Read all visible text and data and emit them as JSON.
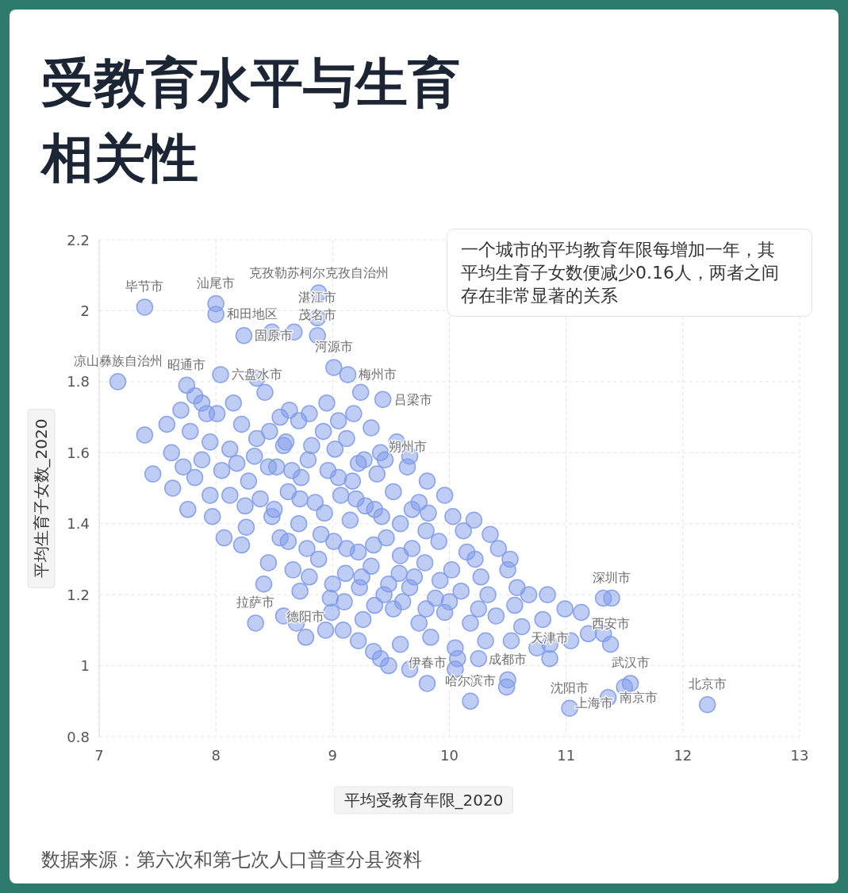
{
  "chart_data": {
    "type": "scatter",
    "title": "受教育水平与生育相关性",
    "xlabel": "平均受教育年限_2020",
    "ylabel": "平均生育子女数_2020",
    "color": "#7f9be9",
    "marker": "circle",
    "grid": true,
    "xlim": [
      7,
      13
    ],
    "ylim": [
      0.8,
      2.2
    ],
    "xticks": [
      7,
      8,
      9,
      10,
      11,
      12,
      13
    ],
    "yticks": [
      0.8,
      1,
      1.2,
      1.4,
      1.6,
      1.8,
      2,
      2.2
    ],
    "x": [
      7.16,
      7.39,
      7.75,
      8.0,
      8.0,
      8.04,
      8.24,
      8.48,
      8.67,
      8.88,
      8.87,
      8.87,
      8.35,
      9.01,
      9.13,
      9.24,
      9.43,
      7.92,
      8.01,
      7.39,
      7.46,
      7.63,
      7.76,
      7.97,
      8.07,
      8.26,
      8.41,
      8.58,
      8.34,
      8.69,
      8.77,
      8.94,
      9.09,
      9.35,
      9.41,
      9.48,
      9.66,
      9.81,
      10.05,
      9.41,
      10.03,
      10.21,
      10.35,
      10.5,
      10.58,
      10.68,
      10.84,
      10.99,
      11.13,
      11.32,
      11.39,
      11.19,
      11.32,
      11.38,
      11.04,
      10.86,
      10.75,
      10.86,
      10.53,
      10.5,
      10.49,
      10.18,
      10.25,
      10.07,
      11.03,
      11.36,
      11.5,
      11.55,
      12.21,
      9.64,
      7.82,
      8.15,
      8.42,
      8.63,
      8.95,
      9.18,
      7.58,
      7.78,
      8.22,
      8.46,
      8.71,
      8.92,
      9.12,
      9.33,
      9.55,
      7.62,
      7.88,
      8.12,
      8.33,
      8.58,
      8.79,
      9.02,
      9.22,
      9.66,
      7.82,
      8.05,
      8.28,
      8.52,
      8.73,
      8.96,
      9.17,
      9.38,
      9.81,
      8.12,
      8.38,
      8.62,
      8.85,
      9.07,
      9.28,
      9.52,
      9.74,
      9.96,
      8.48,
      8.71,
      8.93,
      9.15,
      9.36,
      9.58,
      9.82,
      10.12,
      8.22,
      8.55,
      8.78,
      9.01,
      9.22,
      9.46,
      9.68,
      9.91,
      10.15,
      10.42,
      8.45,
      8.66,
      8.88,
      9.11,
      9.33,
      9.57,
      9.79,
      10.02,
      10.27,
      10.52,
      8.72,
      8.98,
      9.23,
      9.44,
      9.66,
      9.88,
      10.1,
      10.33,
      10.56,
      8.99,
      9.26,
      9.52,
      9.74,
      9.96,
      10.18,
      10.4,
      10.62,
      10.8,
      9.22,
      9.58,
      9.84,
      10.05,
      10.31,
      8.55,
      8.8,
      9.05,
      8.35,
      8.6,
      8.82,
      9.45,
      8.45,
      8.65,
      9.05,
      9.27,
      8.25,
      8.5,
      8.72,
      9.2,
      9.42,
      9.68,
      8.62,
      8.9,
      9.12,
      9.35,
      9.58,
      9.8,
      8.8,
      9.0,
      9.25,
      9.48,
      9.7,
      9.92,
      10.22,
      9.1,
      9.36,
      9.6,
      9.8,
      10.0,
      10.25,
      7.7,
      7.95,
      7.72,
      7.95,
      8.18,
      7.88
    ],
    "values": [
      1.8,
      2.01,
      1.79,
      2.02,
      1.99,
      1.82,
      1.93,
      1.94,
      1.94,
      2.05,
      1.98,
      1.93,
      1.81,
      1.84,
      1.82,
      1.77,
      1.75,
      1.71,
      1.71,
      1.65,
      1.54,
      1.5,
      1.44,
      1.42,
      1.36,
      1.39,
      1.23,
      1.14,
      1.12,
      1.12,
      1.08,
      1.1,
      1.1,
      1.04,
      1.02,
      1.0,
      0.99,
      0.95,
      0.99,
      1.6,
      1.42,
      1.41,
      1.37,
      1.27,
      1.22,
      1.2,
      1.2,
      1.16,
      1.15,
      1.19,
      1.19,
      1.09,
      1.09,
      1.06,
      1.07,
      1.06,
      1.05,
      1.02,
      1.07,
      0.96,
      0.94,
      0.9,
      1.02,
      1.02,
      0.88,
      0.91,
      0.94,
      0.95,
      0.89,
      1.56,
      1.76,
      1.74,
      1.77,
      1.72,
      1.74,
      1.71,
      1.68,
      1.66,
      1.68,
      1.66,
      1.69,
      1.66,
      1.64,
      1.67,
      1.63,
      1.6,
      1.58,
      1.61,
      1.59,
      1.62,
      1.58,
      1.61,
      1.57,
      1.59,
      1.53,
      1.55,
      1.52,
      1.56,
      1.53,
      1.55,
      1.52,
      1.54,
      1.52,
      1.48,
      1.47,
      1.49,
      1.46,
      1.48,
      1.45,
      1.49,
      1.46,
      1.48,
      1.42,
      1.4,
      1.43,
      1.41,
      1.44,
      1.4,
      1.43,
      1.38,
      1.34,
      1.36,
      1.33,
      1.35,
      1.32,
      1.36,
      1.33,
      1.35,
      1.32,
      1.33,
      1.29,
      1.27,
      1.3,
      1.26,
      1.28,
      1.26,
      1.29,
      1.27,
      1.25,
      1.3,
      1.21,
      1.19,
      1.22,
      1.2,
      1.22,
      1.19,
      1.21,
      1.2,
      1.17,
      1.15,
      1.13,
      1.16,
      1.12,
      1.15,
      1.12,
      1.14,
      1.11,
      1.13,
      1.07,
      1.06,
      1.08,
      1.05,
      1.07,
      1.7,
      1.71,
      1.69,
      1.64,
      1.63,
      1.62,
      1.58,
      1.56,
      1.55,
      1.53,
      1.58,
      1.45,
      1.44,
      1.47,
      1.47,
      1.42,
      1.44,
      1.35,
      1.37,
      1.33,
      1.34,
      1.31,
      1.38,
      1.25,
      1.23,
      1.25,
      1.23,
      1.25,
      1.24,
      1.3,
      1.18,
      1.17,
      1.18,
      1.16,
      1.18,
      1.16,
      1.72,
      1.63,
      1.56,
      1.48,
      1.57,
      1.74
    ],
    "annotations": [
      "一个城市的平均教育年限每增加一年，其平均生育子女数便减少0.16人，两者之间存在非常显著的关系",
      {
        "text": "毕节市",
        "x": 7.39,
        "y": 2.01
      },
      {
        "text": "汕尾市",
        "x": 8.0,
        "y": 2.02
      },
      {
        "text": "和田地区",
        "x": 8.0,
        "y": 1.99
      },
      {
        "text": "克孜勒苏柯尔克孜自治州",
        "x": 8.88,
        "y": 2.05
      },
      {
        "text": "湛江市",
        "x": 8.87,
        "y": 1.98
      },
      {
        "text": "茂名市",
        "x": 8.87,
        "y": 1.93
      },
      {
        "text": "固原市",
        "x": 8.24,
        "y": 1.93
      },
      {
        "text": "凉山彝族自治州",
        "x": 7.16,
        "y": 1.8
      },
      {
        "text": "昭通市",
        "x": 7.75,
        "y": 1.79
      },
      {
        "text": "六盘水市",
        "x": 8.04,
        "y": 1.82
      },
      {
        "text": "河源市",
        "x": 9.01,
        "y": 1.84
      },
      {
        "text": "梅州市",
        "x": 9.13,
        "y": 1.82
      },
      {
        "text": "吕梁市",
        "x": 9.43,
        "y": 1.75
      },
      {
        "text": "朔州市",
        "x": 9.64,
        "y": 1.56
      },
      {
        "text": "拉萨市",
        "x": 8.34,
        "y": 1.12
      },
      {
        "text": "德阳市",
        "x": 8.77,
        "y": 1.08
      },
      {
        "text": "伊春市",
        "x": 9.81,
        "y": 0.95
      },
      {
        "text": "哈尔滨市",
        "x": 10.18,
        "y": 0.9
      },
      {
        "text": "成都市",
        "x": 10.5,
        "y": 0.96
      },
      {
        "text": "天津市",
        "x": 10.86,
        "y": 1.02
      },
      {
        "text": "深圳市",
        "x": 11.39,
        "y": 1.19
      },
      {
        "text": "西安市",
        "x": 11.38,
        "y": 1.06
      },
      {
        "text": "沈阳市",
        "x": 11.03,
        "y": 0.88
      },
      {
        "text": "南京市",
        "x": 11.36,
        "y": 0.91
      },
      {
        "text": "武汉市",
        "x": 11.55,
        "y": 0.95
      },
      {
        "text": "上海市",
        "x": 11.5,
        "y": 0.94
      },
      {
        "text": "北京市",
        "x": 12.21,
        "y": 0.89
      },
      "数据来源：第六次和第七次人口普查分县资料"
    ]
  }
}
